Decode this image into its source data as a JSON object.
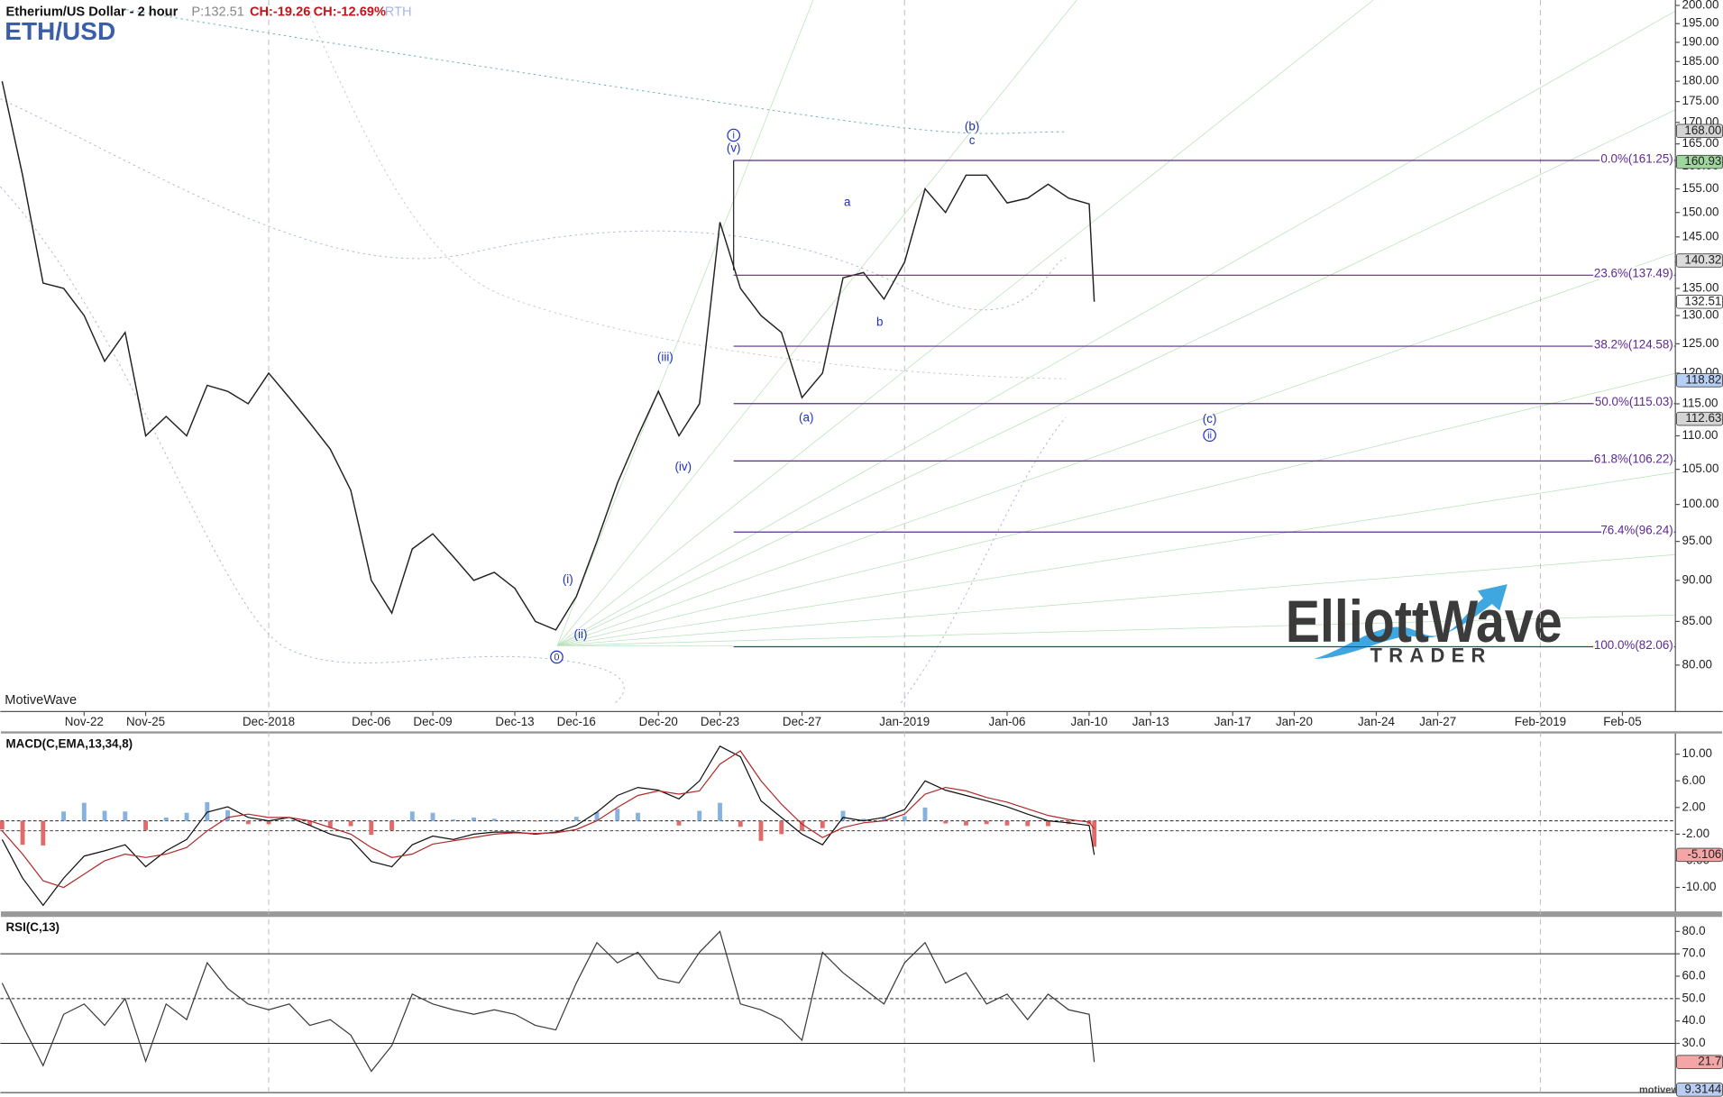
{
  "header": {
    "price": "P:132.51",
    "change": "CH:-19.26",
    "change_percent": "CH:-12.69%",
    "session": "RTH"
  },
  "watermark": "MotiveWave",
  "footer": "motivewave.com",
  "logo": {
    "title": "ElliottWave",
    "subtitle": "TRADER"
  },
  "chart_data": [
    {
      "type": "line",
      "title": "Etherium/US Dollar - 2 hour",
      "subtitle": "ETH/USD",
      "log_scale": true,
      "color": "#222222",
      "x": [
        "2018-11-18",
        "2018-11-19",
        "2018-11-20",
        "2018-11-21",
        "2018-11-22",
        "2018-11-23",
        "2018-11-24",
        "2018-11-25",
        "2018-11-26",
        "2018-11-27",
        "2018-11-28",
        "2018-11-29",
        "2018-11-30",
        "2018-12-01",
        "2018-12-02",
        "2018-12-03",
        "2018-12-04",
        "2018-12-05",
        "2018-12-06",
        "2018-12-07",
        "2018-12-08",
        "2018-12-09",
        "2018-12-10",
        "2018-12-11",
        "2018-12-12",
        "2018-12-13",
        "2018-12-14",
        "2018-12-15",
        "2018-12-16",
        "2018-12-17",
        "2018-12-18",
        "2018-12-19",
        "2018-12-20",
        "2018-12-21",
        "2018-12-22",
        "2018-12-23",
        "2018-12-24",
        "2018-12-25",
        "2018-12-26",
        "2018-12-27",
        "2018-12-28",
        "2018-12-29",
        "2018-12-30",
        "2018-12-31",
        "2019-01-01",
        "2019-01-02",
        "2019-01-03",
        "2019-01-04",
        "2019-01-05",
        "2019-01-06",
        "2019-01-07",
        "2019-01-08",
        "2019-01-09",
        "2019-01-10",
        "2019-01-10T06:00"
      ],
      "values": [
        180,
        158,
        136,
        135,
        130,
        122,
        127,
        110,
        113,
        110,
        118,
        117,
        115,
        120,
        116,
        112,
        108,
        102,
        90,
        86,
        94,
        96,
        93,
        90,
        91,
        89,
        85,
        84,
        88,
        95,
        103,
        110,
        117,
        110,
        115,
        148,
        135,
        130,
        127,
        116,
        120,
        137,
        138,
        133,
        140,
        155,
        150,
        158,
        158,
        152,
        153,
        156,
        153,
        151.77,
        132.51
      ],
      "xlim": [
        "2018-11-17T22:00",
        "2019-02-07T14:00"
      ],
      "ylim": [
        75,
        201.5
      ],
      "xticks": [
        {
          "value": "2018-11-22",
          "label": "Nov-22"
        },
        {
          "value": "2018-11-25",
          "label": "Nov-25"
        },
        {
          "value": "2018-12-01",
          "label": "Dec-2018"
        },
        {
          "value": "2018-12-06",
          "label": "Dec-06"
        },
        {
          "value": "2018-12-09",
          "label": "Dec-09"
        },
        {
          "value": "2018-12-13",
          "label": "Dec-13"
        },
        {
          "value": "2018-12-16",
          "label": "Dec-16"
        },
        {
          "value": "2018-12-20",
          "label": "Dec-20"
        },
        {
          "value": "2018-12-23",
          "label": "Dec-23"
        },
        {
          "value": "2018-12-27",
          "label": "Dec-27"
        },
        {
          "value": "2019-01-01",
          "label": "Jan-2019"
        },
        {
          "value": "2019-01-06",
          "label": "Jan-06"
        },
        {
          "value": "2019-01-10",
          "label": "Jan-10"
        },
        {
          "value": "2019-01-13",
          "label": "Jan-13"
        },
        {
          "value": "2019-01-17",
          "label": "Jan-17"
        },
        {
          "value": "2019-01-20",
          "label": "Jan-20"
        },
        {
          "value": "2019-01-24",
          "label": "Jan-24"
        },
        {
          "value": "2019-01-27",
          "label": "Jan-27"
        },
        {
          "value": "2019-02-01",
          "label": "Feb-2019"
        },
        {
          "value": "2019-02-05",
          "label": "Feb-05"
        }
      ],
      "yticks": [
        {
          "value": 80,
          "label": "80.00"
        },
        {
          "value": 85,
          "label": "85.00"
        },
        {
          "value": 90,
          "label": "90.00"
        },
        {
          "value": 95,
          "label": "95.00"
        },
        {
          "value": 100,
          "label": "100.00"
        },
        {
          "value": 105,
          "label": "105.00"
        },
        {
          "value": 110,
          "label": "110.00"
        },
        {
          "value": 115,
          "label": "115.00"
        },
        {
          "value": 120,
          "label": "120.00"
        },
        {
          "value": 125,
          "label": "125.00"
        },
        {
          "value": 130,
          "label": "130.00"
        },
        {
          "value": 135,
          "label": "135.00"
        },
        {
          "value": 140,
          "label": "140.00"
        },
        {
          "value": 145,
          "label": "145.00"
        },
        {
          "value": 150,
          "label": "150.00"
        },
        {
          "value": 155,
          "label": "155.00"
        },
        {
          "value": 160,
          "label": "160.00"
        },
        {
          "value": 165,
          "label": "165.00"
        },
        {
          "value": 170,
          "label": "170.00"
        },
        {
          "value": 175,
          "label": "175.00"
        },
        {
          "value": 180,
          "label": "180.00"
        },
        {
          "value": 185,
          "label": "185.00"
        },
        {
          "value": 190,
          "label": "190.00"
        },
        {
          "value": 195,
          "label": "195.00"
        },
        {
          "value": 200,
          "label": "200.00"
        }
      ],
      "fib_color": "#5b2a94",
      "fib_start": "2018-12-23T16:00",
      "fib_levels": [
        {
          "value": 161.25,
          "label": "0.0%(161.25)"
        },
        {
          "value": 137.49,
          "label": "23.6%(137.49)"
        },
        {
          "value": 124.58,
          "label": "38.2%(124.58)"
        },
        {
          "value": 115.03,
          "label": "50.0%(115.03)"
        },
        {
          "value": 106.22,
          "label": "61.8%(106.22)"
        },
        {
          "value": 96.24,
          "label": "76.4%(96.24)"
        },
        {
          "value": 82.06,
          "label": "100.0%(82.06)"
        }
      ],
      "annotation_color": "#1f2fc4",
      "annotations": [
        {
          "text": "i",
          "circled": true,
          "x": "2018-12-23T16:00",
          "y": 167
        },
        {
          "text": "(v)",
          "circled": false,
          "x": "2018-12-23T16:00",
          "y": 164
        },
        {
          "text": "(iii)",
          "circled": false,
          "x": "2018-12-20T08:00",
          "y": 122.7
        },
        {
          "text": "(iv)",
          "circled": false,
          "x": "2018-12-21T05:00",
          "y": 105.4
        },
        {
          "text": "(i)",
          "circled": false,
          "x": "2018-12-15T14:00",
          "y": 90.1
        },
        {
          "text": "(ii)",
          "circled": false,
          "x": "2018-12-16T05:00",
          "y": 83.5
        },
        {
          "text": "0",
          "circled": true,
          "x": "2018-12-15T01:00",
          "y": 80.9
        },
        {
          "text": "(a)",
          "circled": false,
          "x": "2018-12-27T05:00",
          "y": 112.8
        },
        {
          "text": "a",
          "circled": false,
          "x": "2018-12-29T05:00",
          "y": 152.2
        },
        {
          "text": "b",
          "circled": false,
          "x": "2018-12-30T19:00",
          "y": 128.8
        },
        {
          "text": "(b)",
          "circled": false,
          "x": "2019-01-04T07:00",
          "y": 169
        },
        {
          "text": "c",
          "circled": false,
          "x": "2019-01-04T07:00",
          "y": 165.8
        },
        {
          "text": "(c)",
          "circled": false,
          "x": "2019-01-15T21:00",
          "y": 112.6
        },
        {
          "text": "ii",
          "circled": true,
          "x": "2019-01-15T21:00",
          "y": 110.1
        }
      ],
      "markers": [
        {
          "value": 168,
          "label": "168.00",
          "color": "#d4d4d4"
        },
        {
          "value": 160.93,
          "label": "160.93",
          "color": "#9fd69f"
        },
        {
          "value": 140.32,
          "label": "140.32",
          "color": "#dcdcdc"
        },
        {
          "value": 132.51,
          "label": "132.51",
          "color": "#ffffff"
        },
        {
          "value": 118.82,
          "label": "118.82",
          "color": "#b8cff5"
        },
        {
          "value": 112.63,
          "label": "112.63",
          "color": "#d4d4d4"
        }
      ]
    },
    {
      "type": "line",
      "title": "MACD(C,EMA,13,34,8)",
      "ylim": [
        -13.6,
        13.1
      ],
      "yticks": [
        {
          "value": 10,
          "label": "10.00"
        },
        {
          "value": 6,
          "label": "6.00"
        },
        {
          "value": 2,
          "label": "2.00"
        },
        {
          "value": -2,
          "label": "-2.00"
        },
        {
          "value": -6,
          "label": "-6.00"
        },
        {
          "value": -10,
          "label": "-10.00"
        }
      ],
      "levels": [
        0,
        -1.5
      ],
      "series": [
        {
          "style": "bar",
          "color": "#86b2df",
          "negative_color": "#e26a6a",
          "values": [
            -1.3,
            -3.6,
            -3.7,
            1.4,
            2.7,
            1.5,
            1.4,
            -1.4,
            0.5,
            1.2,
            2.8,
            1.6,
            -0.5,
            -0.5,
            0,
            -0.7,
            -1,
            -0.8,
            -2.1,
            -1.4,
            1.4,
            1.2,
            0.2,
            0.5,
            0.3,
            0.1,
            -0.1,
            0.1,
            0.6,
            1.3,
            1.8,
            1.2,
            0.1,
            -0.7,
            1.5,
            2.7,
            -0.9,
            -3,
            -2,
            -1.5,
            -1.1,
            1.5,
            0.3,
            0.5,
            0.7,
            2,
            -0.4,
            -0.7,
            -0.5,
            -0.7,
            -0.8,
            -0.8,
            -0.5,
            -0.5,
            -3.9
          ]
        },
        {
          "style": "line",
          "color": "#111111",
          "values": [
            -2.8,
            -8.6,
            -12.7,
            -8.6,
            -5.3,
            -4.5,
            -3.6,
            -6.9,
            -4.5,
            -2.8,
            1.3,
            2.1,
            0.5,
            0,
            0.5,
            -0.7,
            -2,
            -2.8,
            -6.1,
            -6.9,
            -3.6,
            -2.3,
            -2.8,
            -2,
            -1.7,
            -1.7,
            -2,
            -1.7,
            -0.7,
            1.3,
            3.8,
            5,
            4.6,
            3.3,
            6,
            11.2,
            9.6,
            3,
            0.5,
            -2,
            -3.6,
            0.5,
            0,
            0.5,
            1.7,
            6,
            4.6,
            3.8,
            3,
            2.1,
            1,
            0,
            -0.3,
            -0.7,
            -5.106
          ]
        },
        {
          "style": "line",
          "color": "#b22a2a",
          "values": [
            -1.5,
            -5,
            -9,
            -10,
            -8,
            -6,
            -5,
            -5.5,
            -5,
            -4,
            -1.5,
            0.5,
            1,
            0.5,
            0.5,
            0,
            -1,
            -2,
            -4,
            -5.5,
            -5,
            -3.5,
            -3,
            -2.5,
            -2,
            -1.8,
            -1.9,
            -1.8,
            -1.3,
            0,
            2,
            3.8,
            4.5,
            4,
            4.5,
            8.5,
            10.5,
            6,
            2.5,
            -0.5,
            -2.5,
            -1,
            -0.3,
            0,
            1,
            4,
            5,
            4.5,
            3.5,
            2.8,
            1.8,
            0.8,
            0.2,
            -0.2,
            -1.2
          ]
        }
      ],
      "markers": [
        {
          "value": -5.106,
          "label": "-5.106",
          "color": "#f4a6a6"
        }
      ]
    },
    {
      "type": "line",
      "title": "RSI(C,13)",
      "ylim": [
        8,
        86
      ],
      "color": "#3a3a3a",
      "yticks": [
        {
          "value": 80,
          "label": "80.0"
        },
        {
          "value": 70,
          "label": "70.0"
        },
        {
          "value": 60,
          "label": "60.0"
        },
        {
          "value": 50,
          "label": "50.0"
        },
        {
          "value": 40,
          "label": "40.0"
        },
        {
          "value": 30,
          "label": "30.0"
        }
      ],
      "levels": [
        70,
        50,
        30
      ],
      "values": [
        56.9,
        38,
        20,
        43,
        47.6,
        38,
        50,
        22,
        47.6,
        40.6,
        66,
        54.5,
        47.6,
        45,
        47.6,
        38,
        40.6,
        33.7,
        17.5,
        29,
        52,
        47.6,
        45,
        43,
        45,
        43,
        38,
        36,
        57,
        75,
        66,
        70.7,
        59,
        57,
        70.7,
        80,
        47.6,
        45,
        40.6,
        31.4,
        70.7,
        61.5,
        54.5,
        47.6,
        66,
        75,
        57,
        61.5,
        47.6,
        52,
        40.6,
        52,
        45,
        43,
        21.7
      ],
      "markers": [
        {
          "value": 21.7,
          "label": "21.7",
          "color": "#f4a6a6"
        },
        {
          "value": 9.3144,
          "label": "9.3144",
          "color": "#b9cdf2"
        }
      ]
    }
  ]
}
